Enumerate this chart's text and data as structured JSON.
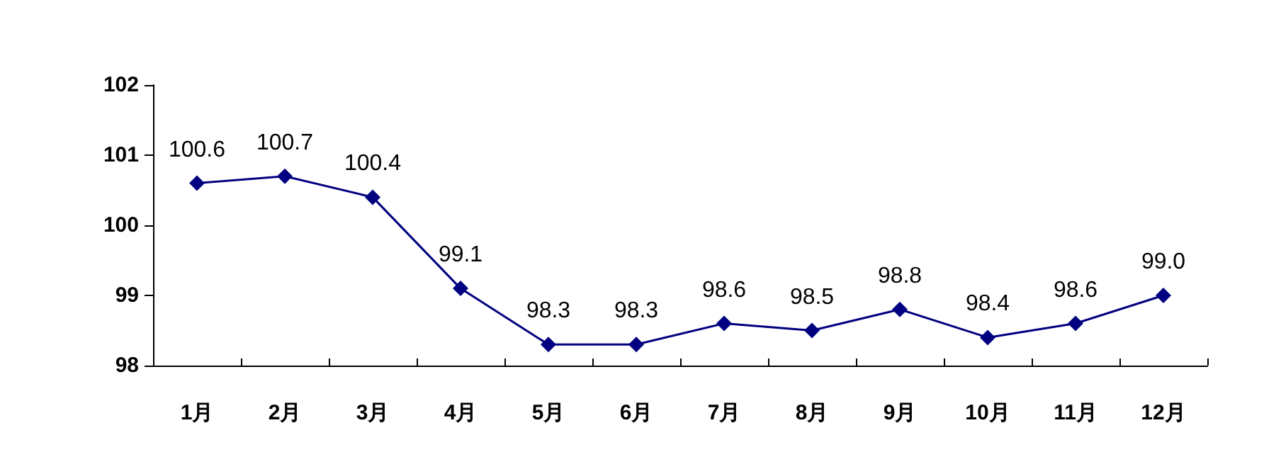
{
  "chart_data": {
    "type": "line",
    "categories": [
      "1月",
      "2月",
      "3月",
      "4月",
      "5月",
      "6月",
      "7月",
      "8月",
      "9月",
      "10月",
      "11月",
      "12月"
    ],
    "series": [
      {
        "color": "#000080",
        "values": [
          100.6,
          100.7,
          100.4,
          99.1,
          98.3,
          98.3,
          98.6,
          98.5,
          98.8,
          98.4,
          98.6,
          99.0
        ],
        "value_labels": [
          "100.6",
          "100.7",
          "100.4",
          "99.1",
          "98.3",
          "98.3",
          "98.6",
          "98.5",
          "98.8",
          "98.4",
          "98.6",
          "99.0"
        ]
      }
    ],
    "ylim": [
      98,
      102
    ],
    "yticks": [
      98,
      99,
      100,
      101,
      102
    ],
    "grid": false,
    "marker": "diamond",
    "line_style": "solid"
  }
}
